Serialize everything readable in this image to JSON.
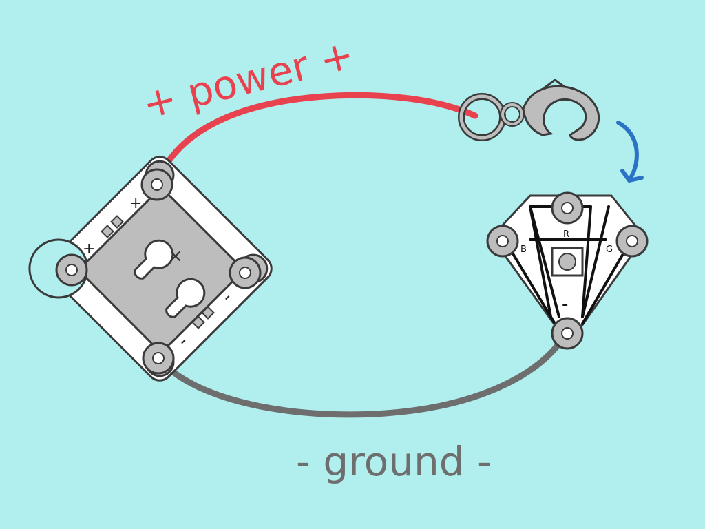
{
  "labels": {
    "power": "+ power +",
    "ground": "- ground -"
  },
  "battery_holder": {
    "plus_marks": [
      "+",
      "+"
    ],
    "minus_marks": [
      "-",
      "-"
    ],
    "center_mark": "×"
  },
  "rgb_led": {
    "pin_labels": {
      "red": "R",
      "blue": "B",
      "green": "G",
      "minus": "-"
    }
  },
  "colors": {
    "background": "#b1eeee",
    "power_wire": "#e8424e",
    "ground_wire": "#6e6e6e",
    "arrow": "#2b73c4",
    "board": "#ffffff",
    "metal": "#bdbdbd",
    "outline": "#3a3a3a"
  },
  "icons": {
    "clasp": "lobster-clasp-icon",
    "arrow": "curved-arrow-icon"
  }
}
